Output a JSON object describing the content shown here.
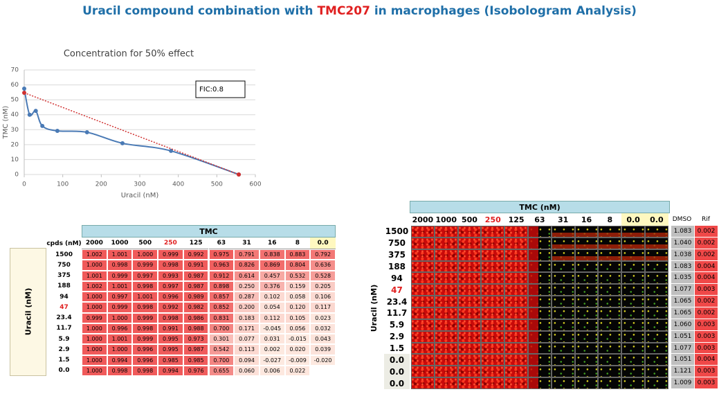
{
  "title": {
    "parts": [
      "Uracil compound combination with ",
      "TMC207",
      " in macrophages (Isobologram Analysis)"
    ],
    "color": "#1f6fa8",
    "accent": "#e02020"
  },
  "chart_data": {
    "type": "line",
    "title": "Concentration for 50% effect",
    "x_label": "Uracil (nM)",
    "y_label": "TMC (nM)",
    "xlim": [
      0,
      600
    ],
    "xticks": [
      0,
      100,
      200,
      300,
      400,
      500,
      600
    ],
    "ylim": [
      0,
      70
    ],
    "yticks": [
      0,
      10,
      20,
      30,
      40,
      50,
      60,
      70
    ],
    "grid": true,
    "annotation": "FIC:0.8",
    "series": [
      {
        "color": "#4a7ab5",
        "smooth": true,
        "x": [
          0,
          14,
          30,
          47,
          86,
          163,
          255,
          381,
          557
        ],
        "values": [
          57.5,
          40,
          42.6,
          32.5,
          29.2,
          28.3,
          20.9,
          15.8,
          0
        ]
      },
      {
        "color": "#d03030",
        "dotted": true,
        "x": [
          0,
          557
        ],
        "values": [
          54.7,
          0
        ]
      }
    ]
  },
  "left_table": {
    "header": "TMC",
    "corner": "cpds (nM)",
    "row_axis": "Uracil (nM)",
    "columns": [
      "2000",
      "1000",
      "500",
      "250",
      "125",
      "63",
      "31",
      "16",
      "8",
      "0.0"
    ],
    "highlight_column": 3,
    "highlight_row": 5,
    "rows": [
      {
        "label": "1500",
        "cells": [
          "1.002",
          "1.001",
          "1.000",
          "0.999",
          "0.992",
          "0.975",
          "0.791",
          "0.838",
          "0.883",
          "0.792"
        ]
      },
      {
        "label": "750",
        "cells": [
          "1.000",
          "0.998",
          "0.999",
          "0.998",
          "0.991",
          "0.963",
          "0.826",
          "0.869",
          "0.804",
          "0.636"
        ]
      },
      {
        "label": "375",
        "cells": [
          "1.001",
          "0.999",
          "0.997",
          "0.993",
          "0.987",
          "0.912",
          "0.614",
          "0.457",
          "0.532",
          "0.528"
        ]
      },
      {
        "label": "188",
        "cells": [
          "1.002",
          "1.001",
          "0.998",
          "0.997",
          "0.987",
          "0.898",
          "0.250",
          "0.376",
          "0.159",
          "0.205"
        ]
      },
      {
        "label": "94",
        "cells": [
          "1.000",
          "0.997",
          "1.001",
          "0.996",
          "0.989",
          "0.857",
          "0.287",
          "0.102",
          "0.058",
          "0.106"
        ]
      },
      {
        "label": "47",
        "cells": [
          "1.000",
          "0.999",
          "0.998",
          "0.992",
          "0.982",
          "0.852",
          "0.200",
          "0.054",
          "0.120",
          "0.117"
        ]
      },
      {
        "label": "23.4",
        "cells": [
          "0.999",
          "1.000",
          "0.999",
          "0.998",
          "0.986",
          "0.831",
          "0.183",
          "0.112",
          "0.105",
          "0.023"
        ]
      },
      {
        "label": "11.7",
        "cells": [
          "1.000",
          "0.996",
          "0.998",
          "0.991",
          "0.988",
          "0.700",
          "0.171",
          "-0.045",
          "0.056",
          "0.032"
        ]
      },
      {
        "label": "5.9",
        "cells": [
          "1.000",
          "1.001",
          "0.999",
          "0.995",
          "0.973",
          "0.301",
          "0.077",
          "0.031",
          "-0.015",
          "0.043"
        ]
      },
      {
        "label": "2.9",
        "cells": [
          "1.000",
          "1.000",
          "0.996",
          "0.995",
          "0.987",
          "0.542",
          "0.113",
          "0.002",
          "0.020",
          "0.039"
        ]
      },
      {
        "label": "1.5",
        "cells": [
          "1.000",
          "0.994",
          "0.996",
          "0.985",
          "0.985",
          "0.700",
          "0.094",
          "-0.027",
          "-0.009",
          "-0.020"
        ]
      },
      {
        "label": "0.0",
        "cells": [
          "1.000",
          "0.998",
          "0.998",
          "0.994",
          "0.976",
          "0.655",
          "0.060",
          "0.006",
          "0.022"
        ]
      }
    ]
  },
  "right_panel": {
    "header": "TMC (nM)",
    "row_axis": "Uracil (nM)",
    "columns": [
      "2000",
      "1000",
      "500",
      "250",
      "125",
      "63",
      "31",
      "16",
      "8",
      "0.0",
      "0.0"
    ],
    "dmso_header": "DMSO",
    "rif_header": "Rif",
    "highlight_column": 3,
    "highlight_row": 5,
    "rows": [
      {
        "label": "1500",
        "dmso": "1.083",
        "rif": "0.002"
      },
      {
        "label": "750",
        "dmso": "1.040",
        "rif": "0.002"
      },
      {
        "label": "375",
        "dmso": "1.038",
        "rif": "0.002"
      },
      {
        "label": "188",
        "dmso": "1.083",
        "rif": "0.004"
      },
      {
        "label": "94",
        "dmso": "1.035",
        "rif": "0.004"
      },
      {
        "label": "47",
        "dmso": "1.077",
        "rif": "0.003"
      },
      {
        "label": "23.4",
        "dmso": "1.065",
        "rif": "0.002"
      },
      {
        "label": "11.7",
        "dmso": "1.065",
        "rif": "0.002"
      },
      {
        "label": "5.9",
        "dmso": "1.060",
        "rif": "0.003"
      },
      {
        "label": "2.9",
        "dmso": "1.051",
        "rif": "0.003"
      },
      {
        "label": "1.5",
        "dmso": "1.077",
        "rif": "0.003"
      },
      {
        "label": "0.0",
        "dmso": "1.051",
        "rif": "0.004"
      },
      {
        "label": "0.0",
        "dmso": "1.121",
        "rif": "0.003"
      },
      {
        "label": "0.0",
        "dmso": "1.009",
        "rif": "0.003"
      }
    ]
  }
}
